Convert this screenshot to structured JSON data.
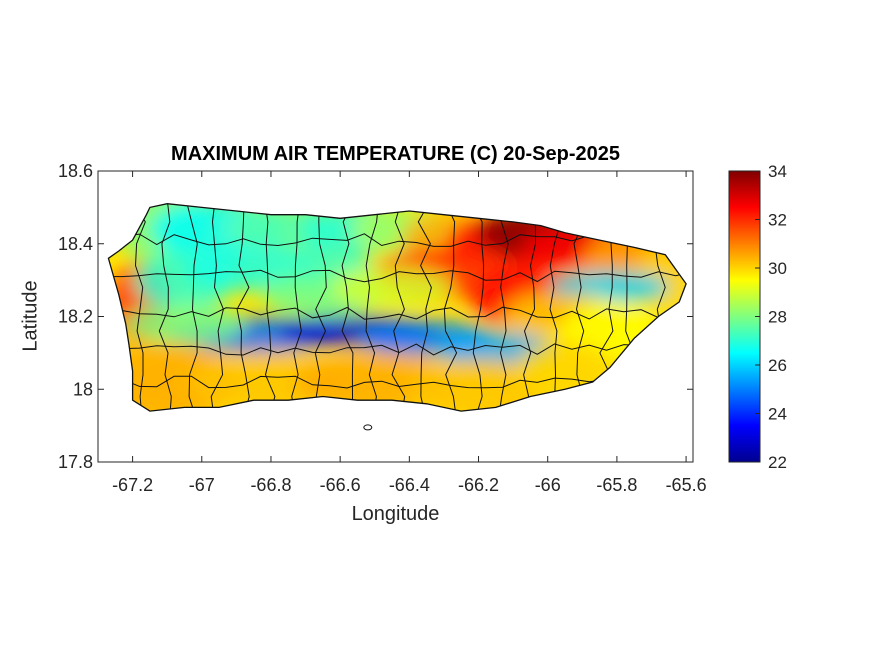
{
  "chart_data": {
    "type": "heatmap",
    "title": "MAXIMUM AIR TEMPERATURE (C) 20-Sep-2025",
    "xlabel": "Longitude",
    "ylabel": "Latitude",
    "xlim": [
      -67.3,
      -65.58
    ],
    "ylim": [
      17.8,
      18.6
    ],
    "x_ticks": [
      -67.2,
      -67,
      -66.8,
      -66.6,
      -66.4,
      -66.2,
      -66,
      -65.8,
      -65.6
    ],
    "x_tick_labels": [
      "-67.2",
      "-67",
      "-66.8",
      "-66.6",
      "-66.4",
      "-66.2",
      "-66",
      "-65.8",
      "-65.6"
    ],
    "y_ticks": [
      17.8,
      18,
      18.2,
      18.4,
      18.6
    ],
    "y_tick_labels": [
      "17.8",
      "18",
      "18.2",
      "18.4",
      "18.6"
    ],
    "colorbar": {
      "colormap": "jet",
      "range": [
        22,
        34
      ],
      "ticks": [
        22,
        24,
        26,
        28,
        30,
        32,
        34
      ],
      "tick_labels": [
        "22",
        "24",
        "26",
        "28",
        "30",
        "32",
        "34"
      ],
      "placement": "right"
    },
    "region": "Puerto Rico (municipality boundaries outlined in black)",
    "approx_features": [
      {
        "lon": -66.05,
        "lat": 18.4,
        "value": 34
      },
      {
        "lon": -65.92,
        "lat": 18.38,
        "value": 32.5
      },
      {
        "lon": -66.3,
        "lat": 18.33,
        "value": 32
      },
      {
        "lon": -67.18,
        "lat": 18.22,
        "value": 32
      },
      {
        "lon": -66.55,
        "lat": 18.16,
        "value": 23
      },
      {
        "lon": -66.78,
        "lat": 18.14,
        "value": 24.5
      },
      {
        "lon": -66.25,
        "lat": 18.12,
        "value": 25.5
      },
      {
        "lon": -65.82,
        "lat": 18.29,
        "value": 26
      },
      {
        "lon": -66.95,
        "lat": 18.35,
        "value": 27
      },
      {
        "lon": -66.0,
        "lat": 18.0,
        "value": 30
      },
      {
        "lon": -67.1,
        "lat": 18.0,
        "value": 30.5
      }
    ]
  }
}
